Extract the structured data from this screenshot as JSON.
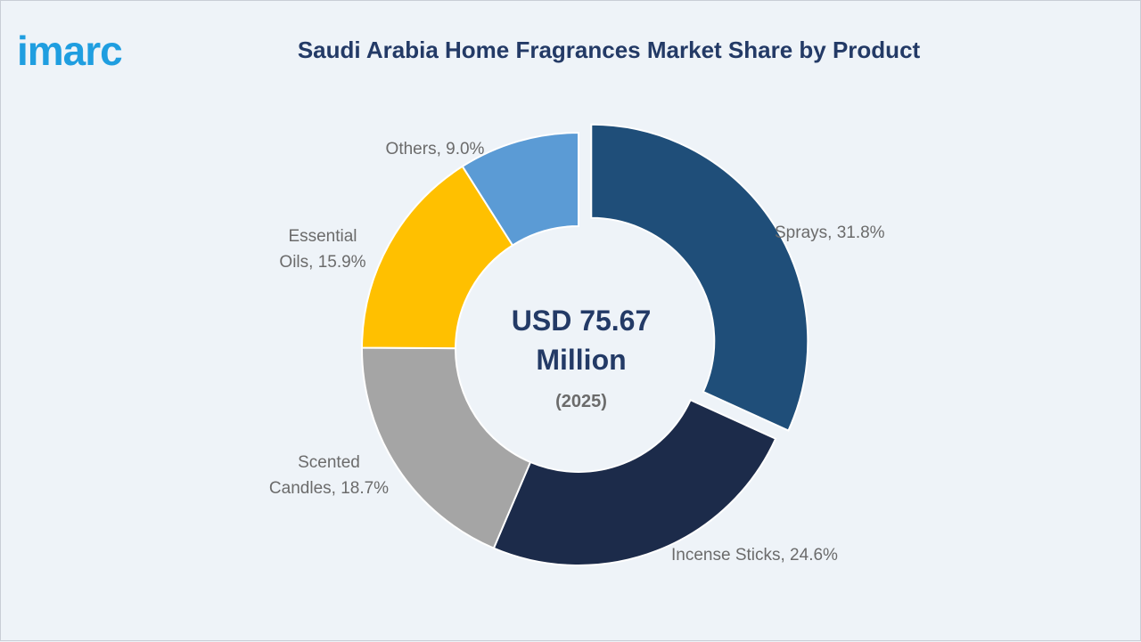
{
  "brand": {
    "logo_text": "imarc"
  },
  "chart_data": {
    "type": "pie",
    "title": "Saudi Arabia Home Fragrances Market Share by Product",
    "center_value_line1": "USD 75.67",
    "center_value_line2": "Million",
    "center_year": "(2025)",
    "slices": [
      {
        "label": "Sprays",
        "value": 31.8,
        "display": "Sprays, 31.8%",
        "color": "#1f4e79",
        "exploded": true
      },
      {
        "label": "Incense Sticks",
        "value": 24.6,
        "display": "Incense Sticks, 24.6%",
        "color": "#1c2b4a",
        "exploded": false
      },
      {
        "label": "Scented Candles",
        "value": 18.7,
        "display": "Scented Candles, 18.7%",
        "color": "#a5a5a5",
        "exploded": false
      },
      {
        "label": "Essential Oils",
        "value": 15.9,
        "display": "Essential Oils, 15.9%",
        "color": "#ffc000",
        "exploded": false
      },
      {
        "label": "Others",
        "value": 9.0,
        "display": "Others, 9.0%",
        "color": "#5b9bd5",
        "exploded": false
      }
    ]
  }
}
